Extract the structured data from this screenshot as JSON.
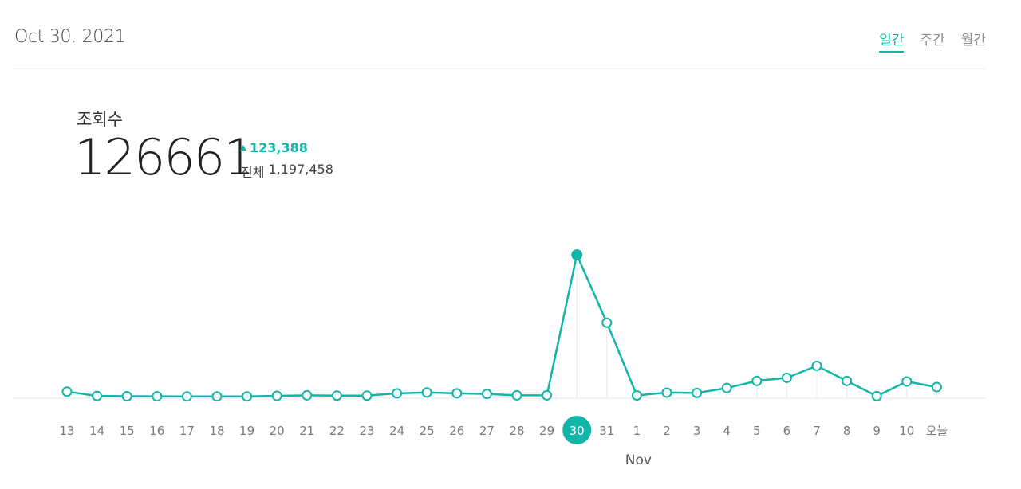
{
  "header": {
    "date": "Oct 30. 2021",
    "tabs": [
      {
        "label": "일간",
        "active": true
      },
      {
        "label": "주간",
        "active": false
      },
      {
        "label": "월간",
        "active": false
      }
    ]
  },
  "metric": {
    "label": "조회수",
    "value": "126661",
    "change": "123,388",
    "total_label": "전체",
    "total_value": "1,197,458"
  },
  "colors": {
    "accent": "#13b5a8",
    "gridline": "#e9e9e9",
    "baseline": "#e6e6e6"
  },
  "chart_data": {
    "type": "line",
    "categories": [
      "13",
      "14",
      "15",
      "16",
      "17",
      "18",
      "19",
      "20",
      "21",
      "22",
      "23",
      "24",
      "25",
      "26",
      "27",
      "28",
      "29",
      "30",
      "31",
      "1",
      "2",
      "3",
      "4",
      "5",
      "6",
      "7",
      "8",
      "9",
      "10",
      "오늘"
    ],
    "values": [
      4450,
      650,
      350,
      250,
      150,
      150,
      200,
      700,
      1150,
      900,
      900,
      2900,
      3700,
      2950,
      2400,
      1150,
      1150,
      126661,
      66000,
      1050,
      3600,
      3300,
      7700,
      14000,
      16800,
      27500,
      14000,
      450,
      13500,
      8500
    ],
    "selected_index": 17,
    "month_label": "Nov",
    "month_label_index": 19,
    "ylim": [
      0,
      128000
    ],
    "grid": false,
    "legend": "none"
  }
}
